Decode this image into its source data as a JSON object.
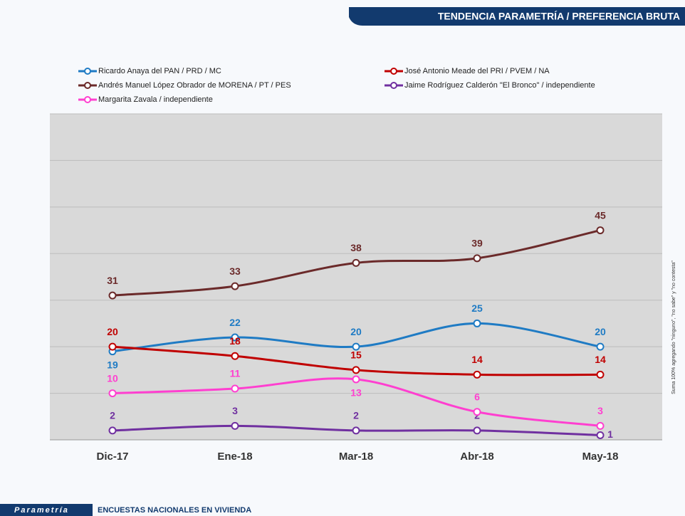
{
  "header": {
    "title": "TENDENCIA PARAMETRÍA / PREFERENCIA BRUTA"
  },
  "footer": {
    "brand": "Parametría",
    "text": "ENCUESTAS NACIONALES EN VIVIENDA"
  },
  "chart_data": {
    "type": "line",
    "note": "Suma 100% agregando \"ninguno\", \"no sabe\" y \"no contesta\"",
    "categories": [
      "Dic-17",
      "Ene-18",
      "Mar-18",
      "Abr-18",
      "May-18"
    ],
    "ylim": [
      0,
      70
    ],
    "yticks": [
      0,
      10,
      20,
      30,
      40,
      50,
      60,
      70
    ],
    "grid": true,
    "series": [
      {
        "name": "Ricardo Anaya del PAN / PRD / MC",
        "color": "#1f7bc4",
        "values": [
          19,
          22,
          20,
          25,
          20
        ]
      },
      {
        "name": "José Antonio Meade del PRI / PVEM / NA",
        "color": "#c00000",
        "values": [
          20,
          18,
          15,
          14,
          14
        ]
      },
      {
        "name": "Andrés Manuel López Obrador de MORENA / PT / PES",
        "color": "#6b2a2a",
        "values": [
          31,
          33,
          38,
          39,
          45
        ]
      },
      {
        "name": "Jaime Rodríguez Calderón  \"El Bronco\" / independiente",
        "color": "#7030a0",
        "values": [
          2,
          3,
          2,
          2,
          1
        ]
      },
      {
        "name": "Margarita Zavala / independiente",
        "color": "#ff3fd0",
        "values": [
          10,
          11,
          13,
          6,
          3
        ]
      }
    ]
  }
}
